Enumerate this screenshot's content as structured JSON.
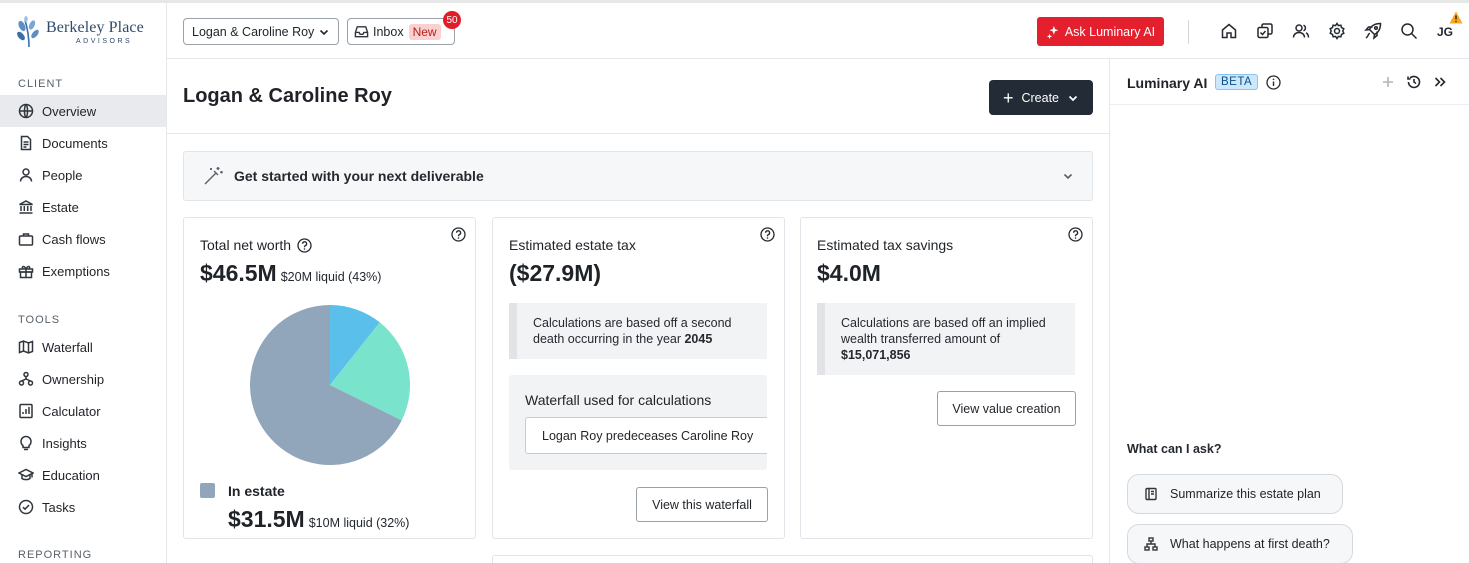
{
  "brand": {
    "name": "Berkeley Place",
    "subtitle": "ADVISORS"
  },
  "sidebar": {
    "sections": [
      {
        "label": "CLIENT"
      },
      {
        "label": "TOOLS"
      },
      {
        "label": "REPORTING"
      }
    ],
    "client_items": [
      {
        "label": "Overview",
        "icon": "globe-icon",
        "active": true
      },
      {
        "label": "Documents",
        "icon": "document-icon"
      },
      {
        "label": "People",
        "icon": "person-icon"
      },
      {
        "label": "Estate",
        "icon": "bank-icon"
      },
      {
        "label": "Cash flows",
        "icon": "briefcase-icon"
      },
      {
        "label": "Exemptions",
        "icon": "gift-icon"
      }
    ],
    "tool_items": [
      {
        "label": "Waterfall",
        "icon": "map-icon"
      },
      {
        "label": "Ownership",
        "icon": "hierarchy-icon"
      },
      {
        "label": "Calculator",
        "icon": "calculator-icon"
      },
      {
        "label": "Insights",
        "icon": "lightbulb-icon"
      },
      {
        "label": "Education",
        "icon": "graduation-cap-icon"
      },
      {
        "label": "Tasks",
        "icon": "check-circle-icon"
      }
    ]
  },
  "topbar": {
    "client_select": "Logan & Caroline Roy",
    "inbox_label": "Inbox",
    "inbox_new": "New",
    "inbox_count": "50",
    "ask_ai_label": "Ask Luminary AI",
    "avatar_initials": "JG"
  },
  "page": {
    "title": "Logan & Caroline Roy",
    "create_label": "Create",
    "banner_text": "Get started with your next deliverable"
  },
  "cards": {
    "net_worth": {
      "title": "Total net worth",
      "value": "$46.5M",
      "liquid": "$20M liquid (43%)",
      "legend_label": "In estate",
      "estate_value": "$31.5M",
      "estate_liquid": "$10M liquid (32%)",
      "pie": [
        {
          "label": "In estate",
          "fraction": 0.677,
          "color": "#91a5bb"
        },
        {
          "label": "",
          "fraction": 0.107,
          "color": "#5bbfec"
        },
        {
          "label": "",
          "fraction": 0.216,
          "color": "#79e3cc"
        }
      ]
    },
    "estate_tax": {
      "title": "Estimated estate tax",
      "value": "($27.9M)",
      "note_prefix": "Calculations are based off a second death occurring in the year ",
      "note_year": "2045",
      "waterfall_title": "Waterfall used for calculations",
      "waterfall_selected": "Logan Roy predeceases Caroline Roy",
      "button": "View this waterfall"
    },
    "tax_savings": {
      "title": "Estimated tax savings",
      "value": "$4.0M",
      "note_prefix": "Calculations are based off an implied wealth transferred amount of ",
      "note_amount": "$15,071,856",
      "button": "View value creation"
    }
  },
  "ai_panel": {
    "title": "Luminary AI",
    "badge": "BETA",
    "ask_label": "What can I ask?",
    "suggestions": [
      {
        "label": "Summarize this estate plan",
        "icon": "book-icon"
      },
      {
        "label": "What happens at first death?",
        "icon": "org-chart-icon"
      }
    ]
  }
}
